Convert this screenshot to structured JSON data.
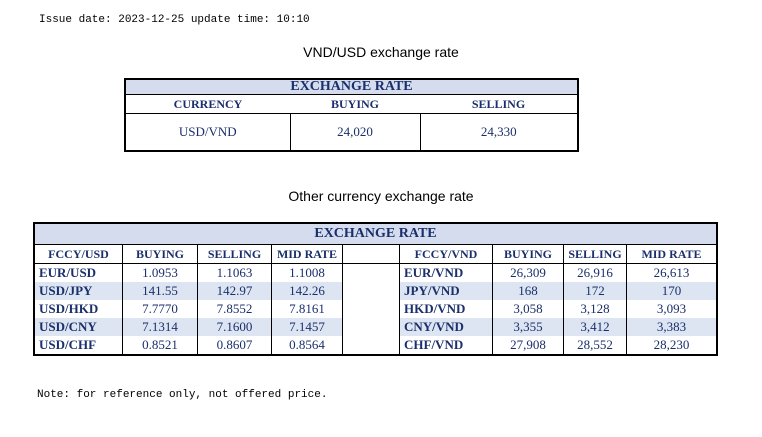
{
  "issue_line": "Issue date: 2023-12-25 update time: 10:10",
  "title_main": "VND/USD exchange rate",
  "title_other": "Other currency exchange rate",
  "note": "Note: for reference only, not offered price.",
  "top_table": {
    "band": "EXCHANGE RATE",
    "headers": [
      "CURRENCY",
      "BUYING",
      "SELLING"
    ],
    "row": {
      "currency": "USD/VND",
      "buying": "24,020",
      "selling": "24,330"
    }
  },
  "other_table": {
    "band": "EXCHANGE  RATE",
    "left_headers": [
      "FCCY/USD",
      "BUYING",
      "SELLING",
      "MID RATE"
    ],
    "right_headers": [
      "FCCY/VND",
      "BUYING",
      "SELLING",
      "MID RATE"
    ],
    "left_rows": [
      {
        "pair": "EUR/USD",
        "buying": "1.0953",
        "selling": "1.1063",
        "mid": "1.1008"
      },
      {
        "pair": "USD/JPY",
        "buying": "141.55",
        "selling": "142.97",
        "mid": "142.26"
      },
      {
        "pair": "USD/HKD",
        "buying": "7.7770",
        "selling": "7.8552",
        "mid": "7.8161"
      },
      {
        "pair": "USD/CNY",
        "buying": "7.1314",
        "selling": "7.1600",
        "mid": "7.1457"
      },
      {
        "pair": "USD/CHF",
        "buying": "0.8521",
        "selling": "0.8607",
        "mid": "0.8564"
      }
    ],
    "right_rows": [
      {
        "pair": "EUR/VND",
        "buying": "26,309",
        "selling": "26,916",
        "mid": "26,613"
      },
      {
        "pair": "JPY/VND",
        "buying": "168",
        "selling": "172",
        "mid": "170"
      },
      {
        "pair": "HKD/VND",
        "buying": "3,058",
        "selling": "3,128",
        "mid": "3,093"
      },
      {
        "pair": "CNY/VND",
        "buying": "3,355",
        "selling": "3,412",
        "mid": "3,383"
      },
      {
        "pair": "CHF/VND",
        "buying": "27,908",
        "selling": "28,552",
        "mid": "28,230"
      }
    ]
  },
  "colors": {
    "band_bg": "#d4dced",
    "alt_row_bg": "#dce5f1",
    "table_text": "#1a2f6b"
  }
}
